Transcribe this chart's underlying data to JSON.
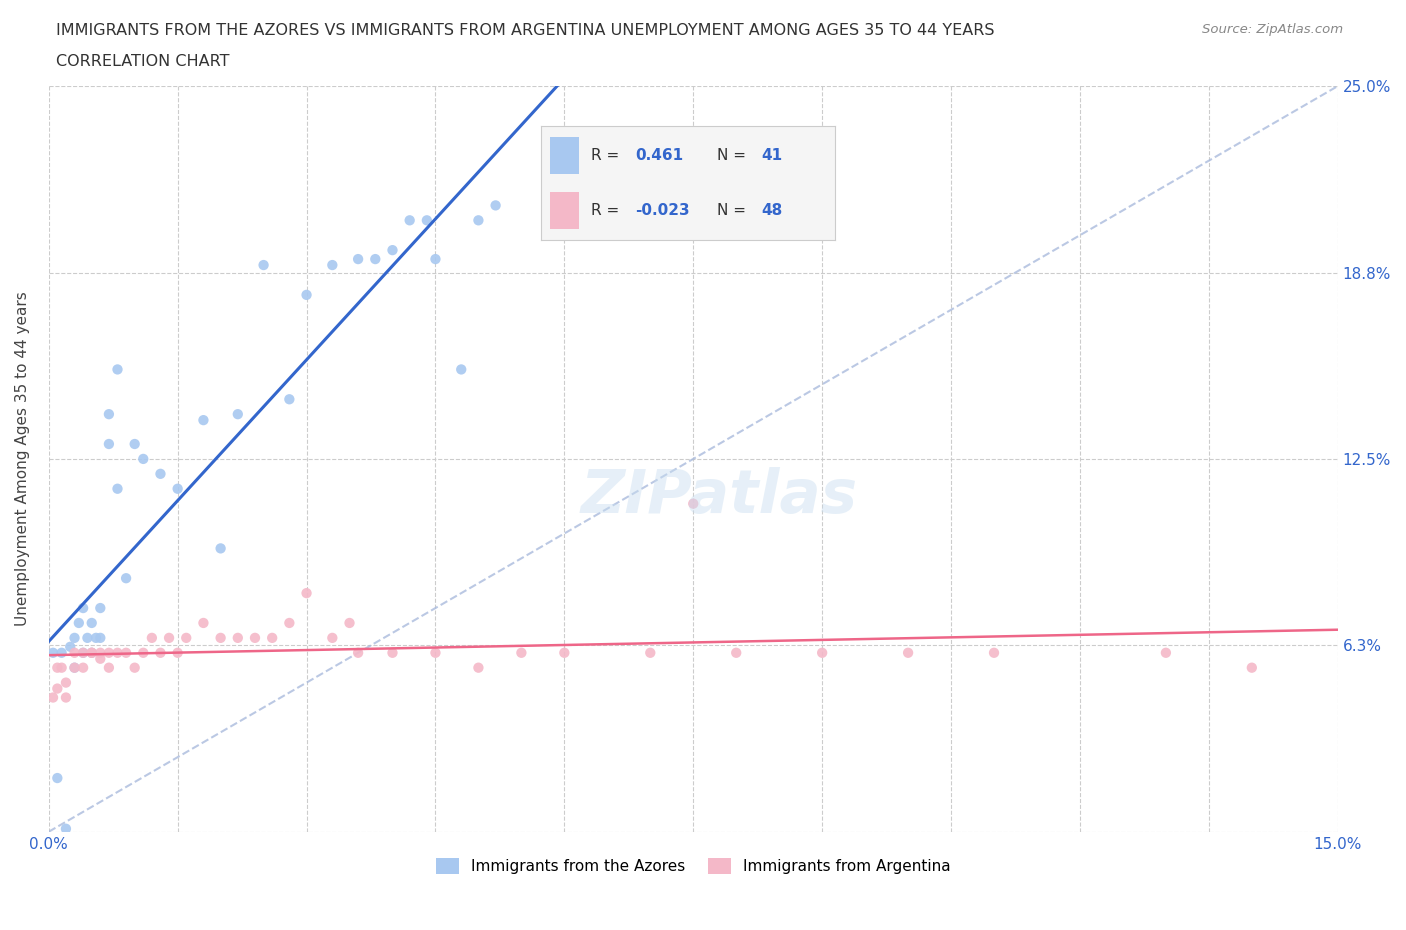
{
  "title_line1": "IMMIGRANTS FROM THE AZORES VS IMMIGRANTS FROM ARGENTINA UNEMPLOYMENT AMONG AGES 35 TO 44 YEARS",
  "title_line2": "CORRELATION CHART",
  "source_text": "Source: ZipAtlas.com",
  "ylabel": "Unemployment Among Ages 35 to 44 years",
  "xlim": [
    0.0,
    0.15
  ],
  "ylim": [
    0.0,
    0.25
  ],
  "ytick_positions": [
    0.0,
    0.0625,
    0.125,
    0.1875,
    0.25
  ],
  "ytick_labels": [
    "",
    "6.3%",
    "12.5%",
    "18.8%",
    "25.0%"
  ],
  "xtick_positions": [
    0.0,
    0.015,
    0.03,
    0.045,
    0.06,
    0.075,
    0.09,
    0.105,
    0.12,
    0.135,
    0.15
  ],
  "xtick_labels": [
    "0.0%",
    "",
    "",
    "",
    "",
    "",
    "",
    "",
    "",
    "",
    "15.0%"
  ],
  "grid_color": "#cccccc",
  "background_color": "#ffffff",
  "azores_color": "#a8c8f0",
  "argentina_color": "#f4b8c8",
  "azores_line_color": "#3366cc",
  "argentina_line_color": "#ee6688",
  "diagonal_color": "#aabbdd",
  "legend_r_color": "#3366cc",
  "legend_azores_r": "0.461",
  "legend_azores_n": "41",
  "legend_argentina_r": "-0.023",
  "legend_argentina_n": "48",
  "source_color": "#888888",
  "ylabel_color": "#444444",
  "tick_label_color": "#3366cc",
  "azores_x": [
    0.0005,
    0.001,
    0.0015,
    0.002,
    0.0025,
    0.003,
    0.003,
    0.0035,
    0.004,
    0.004,
    0.0045,
    0.005,
    0.005,
    0.0055,
    0.006,
    0.006,
    0.007,
    0.007,
    0.008,
    0.008,
    0.009,
    0.01,
    0.011,
    0.013,
    0.015,
    0.018,
    0.02,
    0.022,
    0.025,
    0.028,
    0.03,
    0.033,
    0.036,
    0.04,
    0.045,
    0.048,
    0.05,
    0.052,
    0.038,
    0.042,
    0.044
  ],
  "azores_y": [
    0.06,
    0.018,
    0.06,
    0.001,
    0.062,
    0.055,
    0.065,
    0.07,
    0.06,
    0.075,
    0.065,
    0.06,
    0.07,
    0.065,
    0.065,
    0.075,
    0.13,
    0.14,
    0.155,
    0.115,
    0.085,
    0.13,
    0.125,
    0.12,
    0.115,
    0.138,
    0.095,
    0.14,
    0.19,
    0.145,
    0.18,
    0.19,
    0.192,
    0.195,
    0.192,
    0.155,
    0.205,
    0.21,
    0.192,
    0.205,
    0.205
  ],
  "argentina_x": [
    0.0005,
    0.001,
    0.001,
    0.0015,
    0.002,
    0.002,
    0.003,
    0.003,
    0.004,
    0.004,
    0.005,
    0.005,
    0.006,
    0.006,
    0.007,
    0.007,
    0.008,
    0.009,
    0.01,
    0.011,
    0.012,
    0.013,
    0.014,
    0.015,
    0.016,
    0.018,
    0.02,
    0.022,
    0.024,
    0.026,
    0.028,
    0.03,
    0.033,
    0.036,
    0.04,
    0.045,
    0.05,
    0.06,
    0.07,
    0.08,
    0.09,
    0.1,
    0.11,
    0.13,
    0.14,
    0.055,
    0.035,
    0.075
  ],
  "argentina_y": [
    0.045,
    0.048,
    0.055,
    0.055,
    0.05,
    0.045,
    0.055,
    0.06,
    0.06,
    0.055,
    0.06,
    0.06,
    0.06,
    0.058,
    0.055,
    0.06,
    0.06,
    0.06,
    0.055,
    0.06,
    0.065,
    0.06,
    0.065,
    0.06,
    0.065,
    0.07,
    0.065,
    0.065,
    0.065,
    0.065,
    0.07,
    0.08,
    0.065,
    0.06,
    0.06,
    0.06,
    0.055,
    0.06,
    0.06,
    0.06,
    0.06,
    0.06,
    0.06,
    0.06,
    0.055,
    0.06,
    0.07,
    0.11
  ]
}
